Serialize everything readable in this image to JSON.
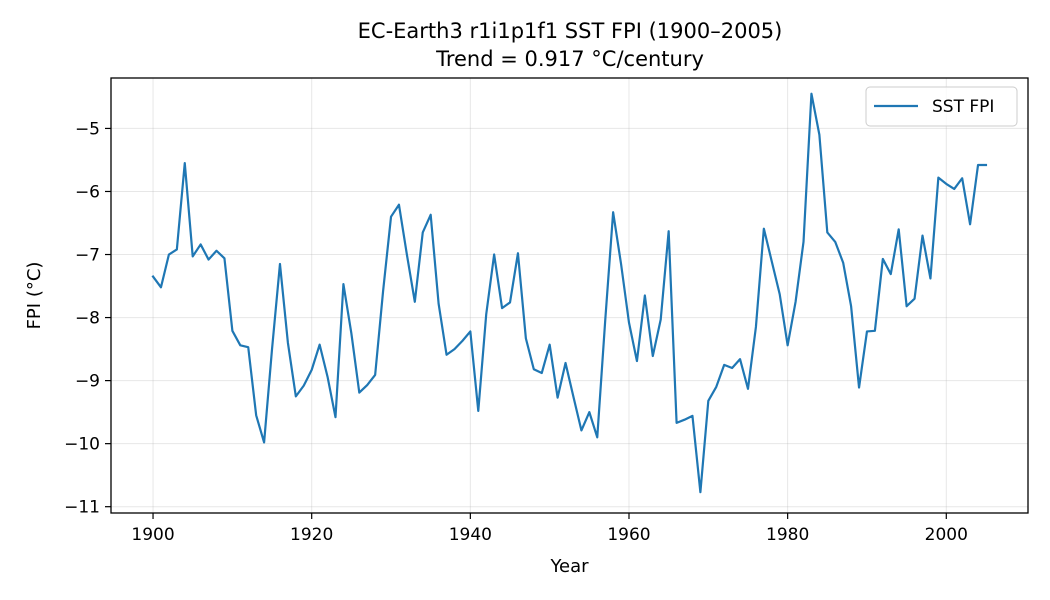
{
  "chart_data": {
    "type": "line",
    "title": "EC-Earth3 r1i1p1f1 SST FPI (1900–2005)",
    "subtitle": "Trend = 0.917 °C/century",
    "xlabel": "Year",
    "ylabel": "FPI (°C)",
    "xlim": [
      1894.7,
      2010.3
    ],
    "ylim": [
      -11.1,
      -4.2
    ],
    "xticks": [
      1900,
      1920,
      1940,
      1960,
      1980,
      2000
    ],
    "yticks": [
      -11,
      -10,
      -9,
      -8,
      -7,
      -6,
      -5
    ],
    "ytick_labels": [
      "−11",
      "−10",
      "−9",
      "−8",
      "−7",
      "−6",
      "−5"
    ],
    "grid": true,
    "legend_position": "upper right",
    "series": [
      {
        "name": "SST FPI",
        "color": "#1f77b4",
        "x": [
          1900,
          1901,
          1902,
          1903,
          1904,
          1905,
          1906,
          1907,
          1908,
          1909,
          1910,
          1911,
          1912,
          1913,
          1914,
          1915,
          1916,
          1917,
          1918,
          1919,
          1920,
          1921,
          1922,
          1923,
          1924,
          1925,
          1926,
          1927,
          1928,
          1929,
          1930,
          1931,
          1932,
          1933,
          1934,
          1935,
          1936,
          1937,
          1938,
          1939,
          1940,
          1941,
          1942,
          1943,
          1944,
          1945,
          1946,
          1947,
          1948,
          1949,
          1950,
          1951,
          1952,
          1953,
          1954,
          1955,
          1956,
          1957,
          1958,
          1959,
          1960,
          1961,
          1962,
          1963,
          1964,
          1965,
          1966,
          1967,
          1968,
          1969,
          1970,
          1971,
          1972,
          1973,
          1974,
          1975,
          1976,
          1977,
          1978,
          1979,
          1980,
          1981,
          1982,
          1983,
          1984,
          1985,
          1986,
          1987,
          1988,
          1989,
          1990,
          1991,
          1992,
          1993,
          1994,
          1995,
          1996,
          1997,
          1998,
          1999,
          2000,
          2001,
          2002,
          2003,
          2004,
          2005
        ],
        "y": [
          -7.35,
          -7.52,
          -7.0,
          -6.92,
          -5.55,
          -7.03,
          -6.84,
          -7.08,
          -6.94,
          -7.06,
          -8.21,
          -8.44,
          -8.47,
          -9.55,
          -9.98,
          -8.5,
          -7.15,
          -8.4,
          -9.25,
          -9.08,
          -8.83,
          -8.43,
          -8.94,
          -9.58,
          -7.47,
          -8.25,
          -9.19,
          -9.07,
          -8.91,
          -7.58,
          -6.4,
          -6.21,
          -7.0,
          -7.75,
          -6.65,
          -6.37,
          -7.78,
          -8.59,
          -8.5,
          -8.37,
          -8.22,
          -9.48,
          -7.95,
          -7.0,
          -7.85,
          -7.76,
          -6.98,
          -8.33,
          -8.82,
          -8.88,
          -8.43,
          -9.27,
          -8.72,
          -9.26,
          -9.79,
          -9.5,
          -9.9,
          -8.05,
          -6.33,
          -7.15,
          -8.08,
          -8.69,
          -7.65,
          -8.61,
          -8.03,
          -6.63,
          -9.67,
          -9.62,
          -9.56,
          -10.77,
          -9.32,
          -9.1,
          -8.75,
          -8.8,
          -8.66,
          -9.13,
          -8.15,
          -6.59,
          -7.11,
          -7.63,
          -8.44,
          -7.75,
          -6.8,
          -4.45,
          -5.1,
          -6.65,
          -6.8,
          -7.13,
          -7.82,
          -9.11,
          -8.22,
          -8.21,
          -7.07,
          -7.31,
          -6.6,
          -7.82,
          -7.7,
          -6.7,
          -7.38,
          -5.78,
          -5.88,
          -5.96,
          -5.79,
          -6.52,
          -5.58,
          -5.58
        ]
      }
    ]
  }
}
